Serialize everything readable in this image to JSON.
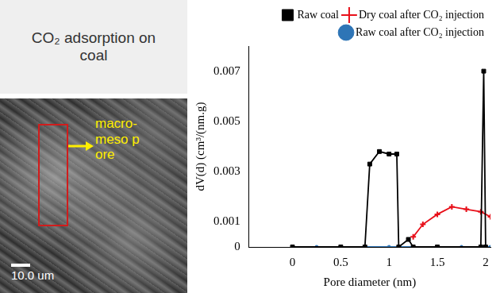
{
  "panel": {
    "title": "CO₂ adsorption on coal",
    "annotation": "macro-meso pore",
    "scale_bar": "10.0 um"
  },
  "chart_data": {
    "type": "line",
    "x_label": "Pore diameter (nm)",
    "y_label": "dV(d) (cm³/(nm.g)",
    "xlim": [
      -0.45,
      2.05
    ],
    "xticks": [
      0,
      0.5,
      1,
      1.5,
      2
    ],
    "ylim": [
      0,
      0.008
    ],
    "yticks": [
      0,
      0.001,
      0.003,
      0.005,
      0.007
    ],
    "grid": false,
    "legend": "upper right",
    "series": [
      {
        "name": "Raw coal",
        "color": "#000000",
        "marker": "square",
        "x": [
          0,
          0.5,
          0.75,
          0.8,
          0.9,
          1.0,
          1.08,
          1.1,
          1.2,
          1.25,
          1.5,
          1.95,
          1.98,
          2.0
        ],
        "values": [
          0,
          0,
          0,
          0.0033,
          0.0038,
          0.0037,
          0.0037,
          0,
          0.0003,
          0,
          0,
          0,
          0.007,
          0
        ]
      },
      {
        "name": "Dry coal after CO₂ injection",
        "color": "#e8101a",
        "marker": "cross",
        "x": [
          1.25,
          1.35,
          1.5,
          1.65,
          1.8,
          1.95,
          2.05
        ],
        "values": [
          0.0004,
          0.0009,
          0.0013,
          0.0016,
          0.0015,
          0.0014,
          0.0012
        ]
      },
      {
        "name": "Raw coal after CO₂ injection",
        "color": "#2e75b6",
        "marker": "circle",
        "x": [
          0,
          0.25,
          0.5,
          0.75,
          1,
          1.25,
          1.5,
          1.75,
          2,
          2.05
        ],
        "values": [
          0,
          0,
          0,
          0,
          0,
          0,
          0,
          0,
          0,
          0
        ]
      }
    ]
  }
}
